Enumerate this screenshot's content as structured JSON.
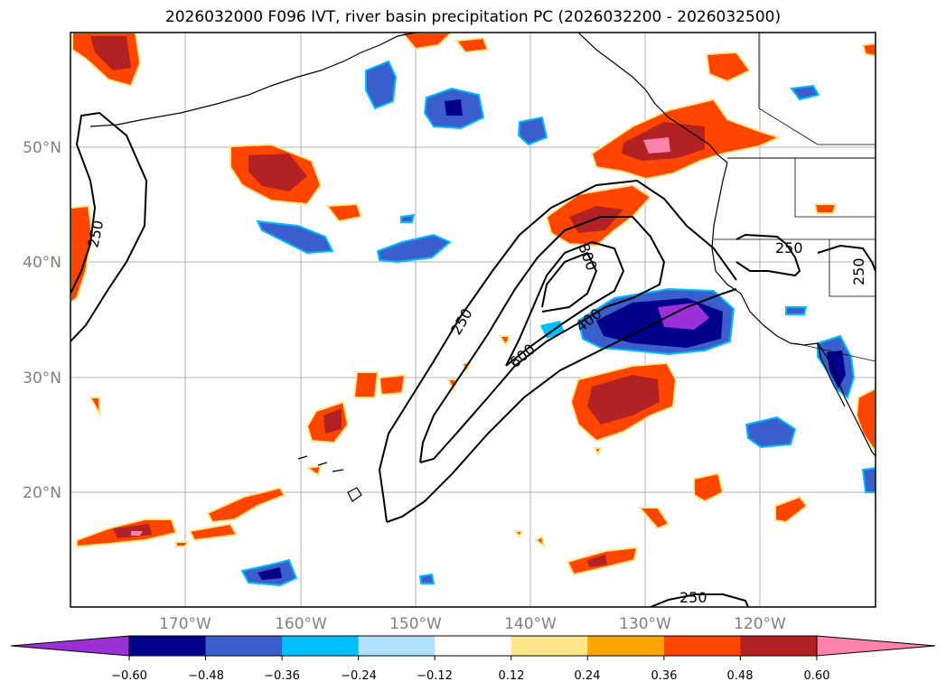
{
  "title": "2026032000 F096 IVT, river basin precipitation PC (2026032200 - 2026032500)",
  "latitudes": [
    "50°N",
    "40°N",
    "30°N",
    "20°N"
  ],
  "longitudes": [
    "170°W",
    "160°W",
    "150°W",
    "140°W",
    "130°W",
    "120°W"
  ],
  "ivt_contour_labels": [
    "250",
    "250",
    "800",
    "400",
    "600",
    "250",
    "250",
    "250"
  ],
  "colorbar": {
    "ticks": [
      "−0.60",
      "−0.48",
      "−0.36",
      "−0.24",
      "−0.12",
      "0.12",
      "0.24",
      "0.36",
      "0.48",
      "0.60"
    ],
    "colors": [
      "#9b30d9",
      "#00008b",
      "#3a5fcd",
      "#00bfff",
      "#b0e2ff",
      "#ffffff",
      "#ffe68a",
      "#ffa500",
      "#ff4500",
      "#b22222",
      "#ff82ab"
    ]
  },
  "chart_data": {
    "type": "map",
    "title": "2026032000 F096 IVT, river basin precipitation PC (2026032200 - 2026032500)",
    "lon_range": [
      -180,
      -110
    ],
    "lat_range": [
      10,
      60
    ],
    "contour_levels": [
      250,
      400,
      600,
      800
    ],
    "colorbar_levels": [
      -0.6,
      -0.48,
      -0.36,
      -0.24,
      -0.12,
      0.12,
      0.24,
      0.36,
      0.48,
      0.6
    ],
    "grid": true
  }
}
